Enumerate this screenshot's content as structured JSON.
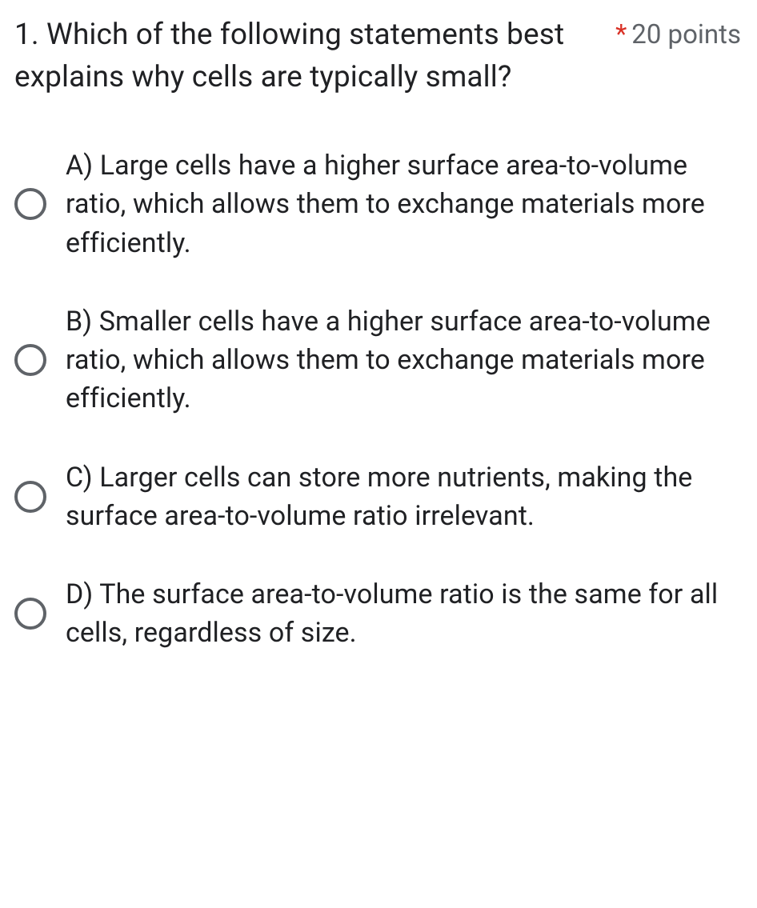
{
  "question": {
    "text": "1. Which of the following statements best explains why cells are typically small?",
    "required_marker": "*",
    "points_label": "20 points"
  },
  "options": [
    {
      "text": "A) Large cells have a higher surface area-to-volume ratio, which allows them to exchange materials more efficiently."
    },
    {
      "text": "B) Smaller cells have a higher surface area-to-volume ratio, which allows them to exchange materials more efficiently."
    },
    {
      "text": "C) Larger cells can store more nutrients, making the surface area-to-volume ratio irrelevant."
    },
    {
      "text": "D) The surface area-to-volume ratio is the same for all cells, regardless of size."
    }
  ],
  "colors": {
    "text": "#202124",
    "secondary": "#5f6368",
    "required": "#d93025",
    "background": "#ffffff"
  }
}
